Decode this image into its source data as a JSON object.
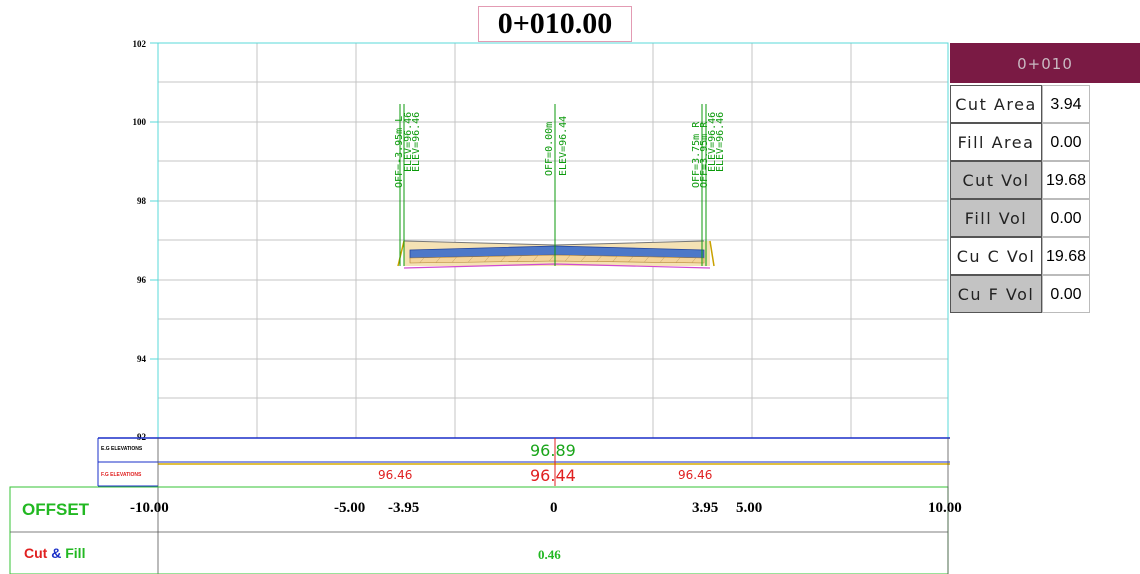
{
  "station_title": "0+010.00",
  "y_axis": {
    "ticks": [
      "102",
      "100",
      "98",
      "96",
      "94",
      "92"
    ],
    "min": 92,
    "max": 102
  },
  "x_axis": {
    "min": -10,
    "max": 10
  },
  "vertical_labels": {
    "left": [
      "OFF=-3.95m L",
      "ELEV=96.46",
      "ELEV=96.46"
    ],
    "center": [
      "OFF=0.00m",
      "ELEV=96.44"
    ],
    "right": [
      "OFF=3.75m R",
      "OFF=3.95m R",
      "ELEV=96.46",
      "ELEV=96.46"
    ]
  },
  "summary": {
    "station": "0+010",
    "rows": [
      {
        "label": "Cut Area",
        "value": "3.94"
      },
      {
        "label": "Fill Area",
        "value": "0.00"
      },
      {
        "label": "Cut Vol",
        "value": "19.68"
      },
      {
        "label": "Fill Vol",
        "value": "0.00"
      },
      {
        "label": "Cu C Vol",
        "value": "19.68"
      },
      {
        "label": "Cu F Vol",
        "value": "0.00"
      }
    ]
  },
  "bands": {
    "eg_label": "E.G ELEVATIONS",
    "fg_label": "F.G ELEVATIONS",
    "eg_value": "96.89",
    "fg_values": [
      "96.46",
      "96.44",
      "96.46"
    ],
    "offset_label": "OFFSET",
    "offsets": [
      "-10.00",
      "-5.00",
      "-3.95",
      "0",
      "3.95",
      "5.00",
      "10.00"
    ],
    "cutfill_cut": "Cut",
    "cutfill_amp": "&",
    "cutfill_fill": "Fill",
    "cutfill_value": "0.46"
  },
  "colors": {
    "grid": "#b5b5b5",
    "frame": "#58d8d8",
    "header_bg": "#7a1a44",
    "label_green": "#0b9a0b",
    "pavement": "#4d78c8",
    "subgrade": "#e8c67a",
    "fg_red": "#e02020"
  }
}
